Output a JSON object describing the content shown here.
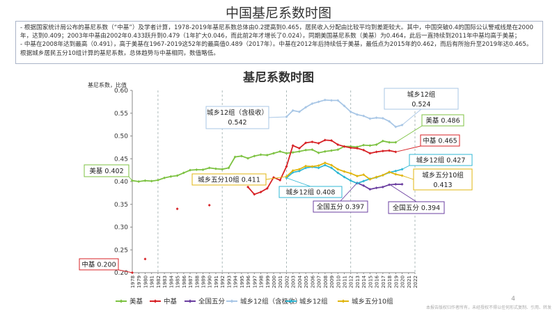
{
  "page": {
    "title": "中国基尼系数时图",
    "notes": [
      "- 根据国家统计局公布的基尼系数（“中基”）及学者计算，1978-2019年基尼系数总体由0.2提高到0.465，居民收入分配由比较平均到差距较大。其中，中国突破0.4的国际公认警戒线是在2000年，达到0.409；2003年中基由2002年0.433跃升到0.479（1年扩大0.046，而此前2年才增长了0.024），同期美国基尼系数（美基）为0.464，此后一直持续到2011年中基均高于美基；",
      "- 中基在2008年达到最高（0.491），高于美基在1967-2019这52年的最高值0.489（2017年）。中基在2012年后持续低于美基，最低点为2015年的0.462，而后有所抬升至2019年达0.465。根据城乡居民五分10组计算的基尼系数，总体趋势与中基相同，数值略低。"
    ],
    "page_number": "4",
    "footnote": "本报告版权归作者所有，未经授权不得以任何形式复制、引用、转发"
  },
  "chart_data": {
    "type": "line",
    "title": "基尼系数时图",
    "ylabel": "基尼系数，比值",
    "xlabel": "",
    "ylim": [
      0.2,
      0.6
    ],
    "yticks": [
      "0.20",
      "0.25",
      "0.30",
      "0.35",
      "0.40",
      "0.45",
      "0.50",
      "0.55",
      "0.60"
    ],
    "x": [
      1978,
      1979,
      1980,
      1981,
      1982,
      1983,
      1984,
      1985,
      1986,
      1987,
      1988,
      1989,
      1990,
      1991,
      1992,
      1993,
      1994,
      1995,
      1996,
      1997,
      1998,
      1999,
      2000,
      2001,
      2002,
      2003,
      2004,
      2005,
      2006,
      2007,
      2008,
      2009,
      2010,
      2011,
      2012,
      2013,
      2014,
      2015,
      2016,
      2017,
      2018,
      2019,
      2020,
      2021,
      2022
    ],
    "grid": "none",
    "legend_placement": "bottom",
    "series": [
      {
        "name": "美基",
        "color": "#7dc242",
        "marker": "diamond",
        "values": [
          0.402,
          0.4,
          0.402,
          0.401,
          0.403,
          0.408,
          0.411,
          0.413,
          0.419,
          0.425,
          0.426,
          0.426,
          0.43,
          0.428,
          0.427,
          0.43,
          0.454,
          0.456,
          0.451,
          0.456,
          0.459,
          0.458,
          0.462,
          0.466,
          0.462,
          0.464,
          0.466,
          0.469,
          0.47,
          0.463,
          0.466,
          0.468,
          0.47,
          0.477,
          0.477,
          0.476,
          0.48,
          0.479,
          0.481,
          0.489,
          0.486,
          0.486,
          null,
          null,
          null
        ]
      },
      {
        "name": "中基",
        "color": "#d72226",
        "marker": "diamond",
        "values": [
          0.2,
          null,
          0.23,
          null,
          null,
          null,
          null,
          0.34,
          null,
          null,
          null,
          null,
          0.348,
          null,
          null,
          null,
          null,
          null,
          0.388,
          0.372,
          0.377,
          0.385,
          0.409,
          0.403,
          0.433,
          0.479,
          0.473,
          0.485,
          0.487,
          0.484,
          0.491,
          0.49,
          0.481,
          0.477,
          0.474,
          0.473,
          0.469,
          0.462,
          0.465,
          0.467,
          0.468,
          0.465,
          null,
          null,
          null
        ]
      },
      {
        "name": "全国五分",
        "color": "#6b3fa0",
        "marker": "diamond",
        "values": [
          null,
          null,
          null,
          null,
          null,
          null,
          null,
          null,
          null,
          null,
          null,
          null,
          null,
          null,
          null,
          null,
          null,
          null,
          null,
          null,
          null,
          null,
          null,
          null,
          null,
          null,
          null,
          null,
          null,
          null,
          null,
          null,
          null,
          null,
          null,
          0.397,
          0.391,
          0.383,
          0.386,
          0.388,
          0.393,
          0.394,
          0.394,
          null,
          null
        ]
      },
      {
        "name": "城乡12组（含极收）",
        "color": "#a9c7e6",
        "marker": "diamond",
        "values": [
          null,
          null,
          null,
          null,
          null,
          null,
          null,
          null,
          null,
          null,
          null,
          null,
          null,
          null,
          null,
          null,
          null,
          null,
          null,
          null,
          null,
          null,
          null,
          null,
          0.542,
          0.556,
          0.553,
          0.563,
          0.571,
          0.575,
          0.579,
          0.578,
          0.578,
          0.566,
          0.553,
          0.547,
          0.544,
          0.538,
          0.54,
          0.539,
          0.532,
          0.52,
          0.524,
          null,
          null
        ]
      },
      {
        "name": "城乡12组",
        "color": "#2fb7d4",
        "marker": "diamond",
        "values": [
          null,
          null,
          null,
          null,
          null,
          null,
          null,
          null,
          null,
          null,
          null,
          null,
          null,
          null,
          null,
          null,
          null,
          null,
          null,
          null,
          null,
          null,
          null,
          null,
          0.408,
          0.42,
          0.423,
          0.43,
          0.432,
          0.43,
          0.436,
          0.43,
          0.419,
          0.41,
          0.402,
          0.396,
          0.401,
          0.406,
          0.409,
          0.414,
          0.42,
          0.423,
          0.427,
          null,
          null
        ]
      },
      {
        "name": "城乡五分10组",
        "color": "#e0b50f",
        "marker": "diamond",
        "values": [
          null,
          null,
          null,
          null,
          null,
          null,
          null,
          null,
          null,
          null,
          null,
          null,
          null,
          null,
          null,
          null,
          null,
          null,
          null,
          null,
          null,
          null,
          null,
          null,
          0.411,
          0.424,
          0.427,
          0.434,
          0.433,
          0.435,
          0.441,
          0.436,
          0.427,
          0.422,
          0.418,
          0.412,
          0.415,
          0.405,
          0.41,
          0.414,
          0.421,
          0.416,
          0.413,
          null,
          null
        ]
      }
    ],
    "annotations": [
      {
        "text": "美基 0.402",
        "color": "#7dc242"
      },
      {
        "text": "中基 0.200",
        "color": "#d72226"
      },
      {
        "text": "城乡12组（含极收）",
        "value": "0.542",
        "color": "#a9c7e6"
      },
      {
        "text": "城乡12组",
        "value": "0.524",
        "color": "#a9c7e6"
      },
      {
        "text": "美基 0.486",
        "color": "#7dc242"
      },
      {
        "text": "中基 0.465",
        "color": "#d72226"
      },
      {
        "text": "城乡五分10组 0.411",
        "color": "#e0b50f"
      },
      {
        "text": "城乡12组 0.408",
        "color": "#2fb7d4"
      },
      {
        "text": "全国五分 0.397",
        "color": "#6b3fa0"
      },
      {
        "text": "全国五分 0.394",
        "color": "#6b3fa0"
      },
      {
        "text": "城乡12组 0.427",
        "color": "#2fb7d4"
      },
      {
        "text": "城乡五分10组",
        "value": "0.413",
        "color": "#e0b50f"
      }
    ]
  }
}
